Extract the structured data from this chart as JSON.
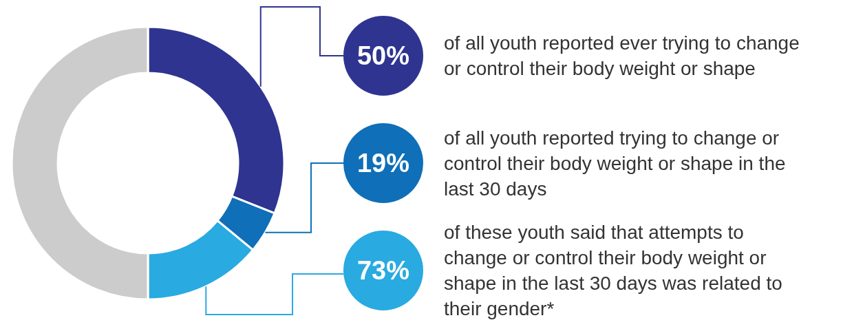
{
  "chart_data": {
    "type": "donut",
    "categories": [
      null,
      null,
      null,
      null
    ],
    "values": [
      31,
      5,
      14,
      50
    ],
    "colors": [
      "#2e3490",
      "#0f6fb8",
      "#29aae1",
      "#cccccc"
    ],
    "annotations": [
      "50%",
      "of all youth reported ever trying to change or control their body weight or shape",
      "19%",
      "of all youth reported trying to change or control their body weight or shape in the last 30 days",
      "73%",
      "of these youth said that attempts to change or control their body weight or shape in the last 30 days was related to their gender*"
    ]
  }
}
